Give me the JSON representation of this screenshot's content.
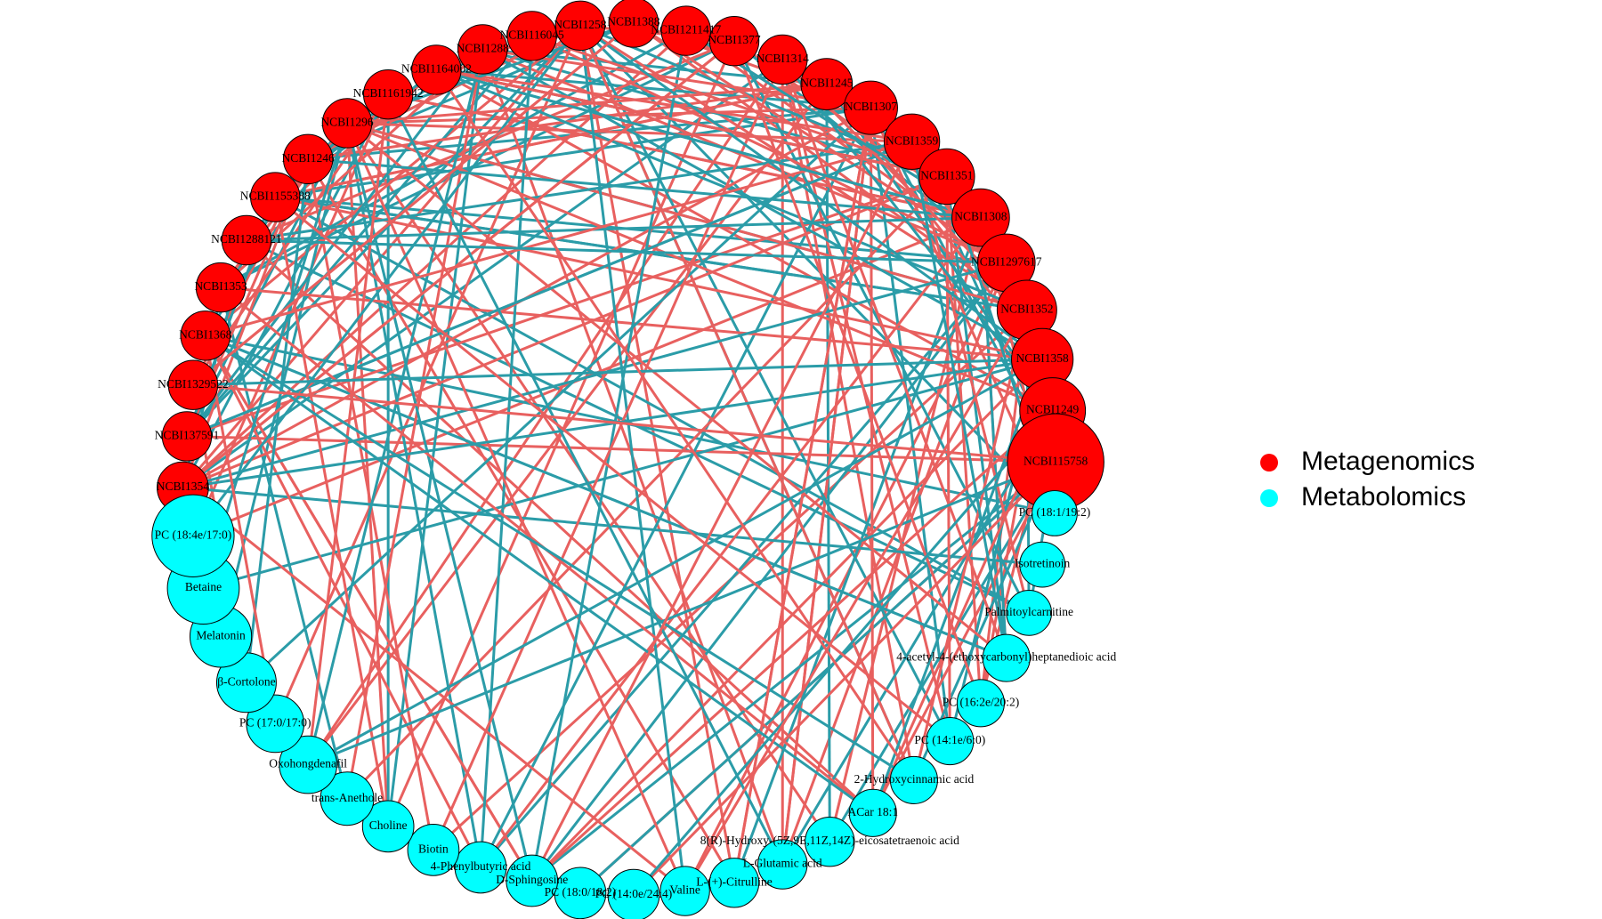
{
  "legend": [
    {
      "label": "Metagenomics",
      "color": "#ff0000"
    },
    {
      "label": "Metabolomics",
      "color": "#00ffff"
    }
  ],
  "nodes": {
    "metagenomics": [
      "NCBI1354",
      "NCBI137591",
      "NCBI1329522",
      "NCBI1368",
      "NCBI1353",
      "NCBI1288121",
      "NCBI1155388",
      "NCBI1246",
      "NCBI1296",
      "NCBI1161942",
      "NCBI1164002",
      "NCBI1288",
      "NCBI116045",
      "NCBI1258",
      "NCBI1388",
      "NCBI1211417",
      "NCBI1377",
      "NCBI1314",
      "NCBI1245",
      "NCBI1307",
      "NCBI1359",
      "NCBI1351",
      "NCBI1308",
      "NCBI1297617",
      "NCBI1352",
      "NCBI1358",
      "NCBI1249",
      "NCBI115758"
    ],
    "metabolomics": [
      "PC (18:1/19:2)",
      "Isotretinoin",
      "Palmitoylcarnitine",
      "4-acetyl-4-(ethoxycarbonyl)heptanedioic acid",
      "PC (16:2e/20:2)",
      "PC (14:1e/6:0)",
      "2-Hydroxycinnamic acid",
      "ACar 18:1",
      "8(R)-Hydroxy-(5Z,9E,11Z,14Z)-eicosatetraenoic acid",
      "L-Glutamic acid",
      "L-(+)-Citrulline",
      "Valine",
      "PC (14:0e/24:4)",
      "PC (18:0/18:2)",
      "D-Sphingosine",
      "4-Phenylbutyric acid",
      "Biotin",
      "Choline",
      "trans-Anethole",
      "Oxohongdenafil",
      "PC (17:0/17:0)",
      "β-Cortolone",
      "Melatonin",
      "Betaine",
      "PC (18:4e/17:0)"
    ]
  }
}
